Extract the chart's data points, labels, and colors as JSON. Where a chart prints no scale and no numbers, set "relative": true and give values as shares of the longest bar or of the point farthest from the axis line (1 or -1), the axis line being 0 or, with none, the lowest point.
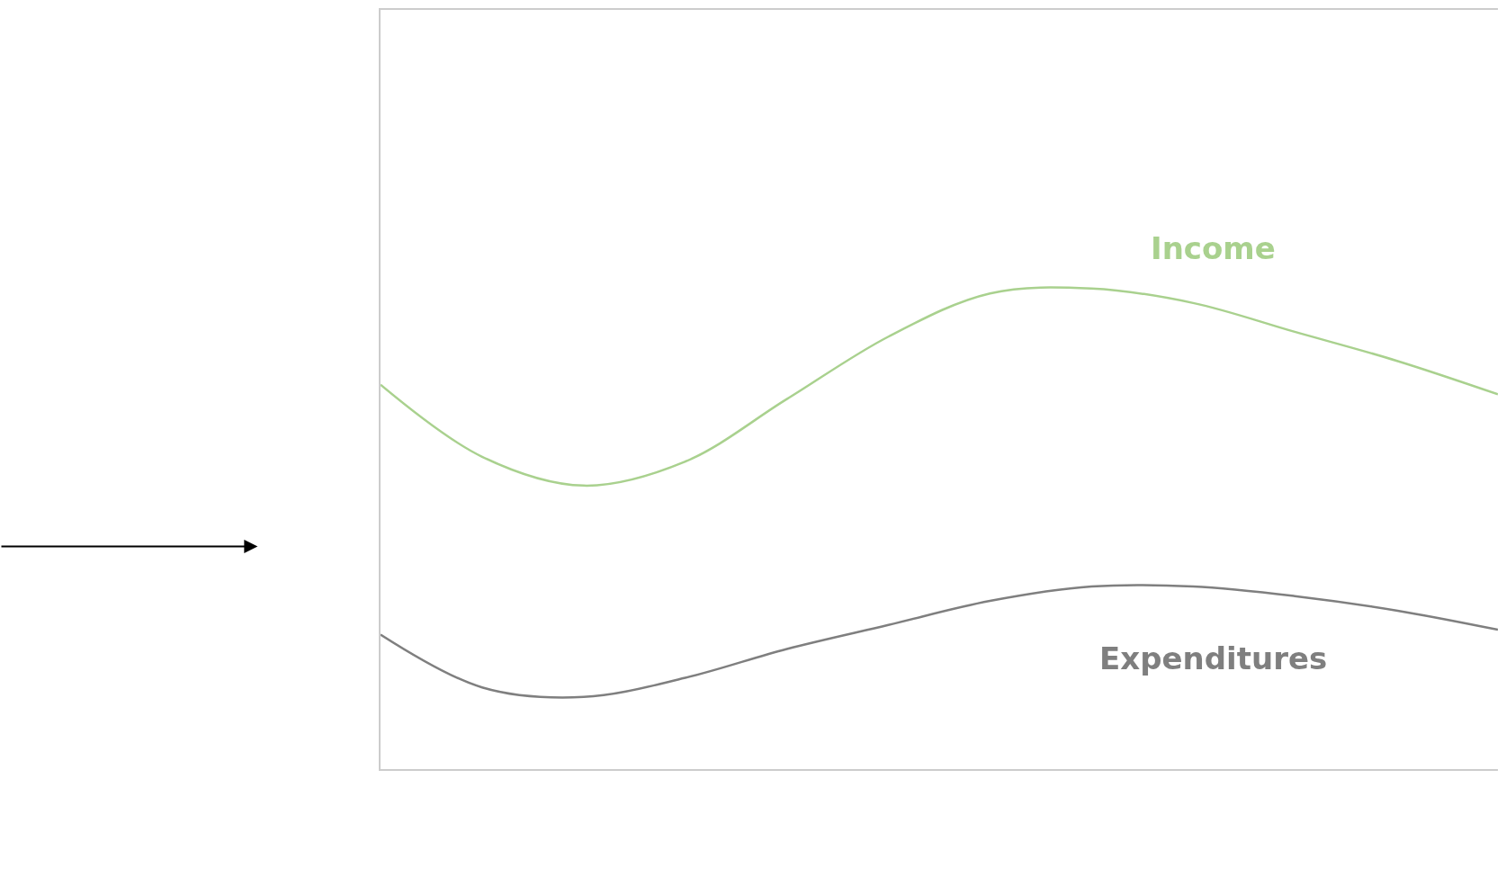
{
  "chart_data": {
    "type": "line",
    "relative": true,
    "legend": false,
    "categories": [
      null,
      null,
      null,
      null,
      null,
      null,
      null,
      null,
      null,
      null,
      null,
      null
    ],
    "series": [
      {
        "name": "Income",
        "color": "#a9d18e",
        "values": [
          0.8,
          0.65,
          0.59,
          0.64,
          0.77,
          0.9,
          0.99,
          1.0,
          0.97,
          0.91,
          0.85,
          0.78
        ]
      },
      {
        "name": "Expenditures",
        "color": "#7f7f7f",
        "values": [
          0.28,
          0.17,
          0.15,
          0.19,
          0.25,
          0.3,
          0.35,
          0.38,
          0.38,
          0.36,
          0.33,
          0.29
        ]
      }
    ]
  }
}
